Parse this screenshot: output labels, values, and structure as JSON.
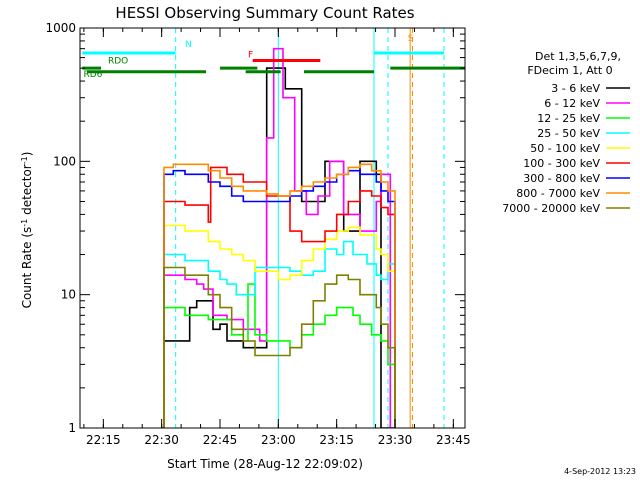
{
  "chart_data": {
    "type": "line",
    "title": "HESSI Observing Summary Count Rates",
    "xlabel": "Start Time (28-Aug-12 22:09:02)",
    "ylabel_parts": [
      "Count Rate (s",
      "-1",
      " detector",
      "-1",
      ")"
    ],
    "yscale": "log",
    "ylim": [
      1,
      1000
    ],
    "xlim": [
      22.15,
      23.8
    ],
    "x_unit": "hours UT",
    "y_ticks": [
      1,
      10,
      100,
      1000
    ],
    "y_tick_labels": [
      "1",
      "10",
      "100",
      "1000"
    ],
    "x_ticks": [
      22.25,
      22.5,
      22.75,
      23.0,
      23.25,
      23.5,
      23.75
    ],
    "x_tick_labels": [
      "22:15",
      "22:30",
      "22:45",
      "23:00",
      "23:15",
      "23:30",
      "23:45"
    ],
    "footer_date": "4-Sep-2012 13:23",
    "legend": {
      "header_lines": [
        "Det 1,3,5,6,7,9,",
        "FDecim 1, Att 0"
      ],
      "placement": "right"
    },
    "series": [
      {
        "name": "3 - 6 keV",
        "color": "#000000",
        "x": [
          22.5,
          22.51,
          22.58,
          22.62,
          22.65,
          22.72,
          22.75,
          22.78,
          22.85,
          22.95,
          23.03,
          23.1,
          23.2,
          23.28,
          23.35,
          23.42,
          23.44,
          23.48,
          23.5
        ],
        "y": [
          1,
          4.5,
          4.5,
          8,
          9,
          5.5,
          6,
          4.5,
          4,
          500,
          350,
          50,
          100,
          30,
          100,
          80,
          1,
          1,
          1
        ]
      },
      {
        "name": "6 - 12 keV",
        "color": "#ff00ff",
        "x": [
          22.5,
          22.51,
          22.6,
          22.65,
          22.68,
          22.72,
          22.78,
          22.85,
          22.92,
          22.95,
          22.98,
          23.02,
          23.07,
          23.12,
          23.17,
          23.22,
          23.28,
          23.35,
          23.42,
          23.44,
          23.48,
          23.5
        ],
        "y": [
          1,
          14,
          13,
          12,
          11,
          7,
          6.5,
          5.5,
          4.5,
          150,
          700,
          300,
          60,
          40,
          55,
          100,
          40,
          30,
          50,
          80,
          1,
          1
        ]
      },
      {
        "name": "12 - 25 keV",
        "color": "#00ff00",
        "x": [
          22.5,
          22.51,
          22.6,
          22.7,
          22.8,
          22.85,
          22.87,
          22.9,
          22.95,
          23.0,
          23.05,
          23.1,
          23.15,
          23.2,
          23.25,
          23.28,
          23.32,
          23.35,
          23.4,
          23.44,
          23.47,
          23.5
        ],
        "y": [
          1,
          8,
          7,
          6.5,
          5,
          4.5,
          12,
          5,
          4.5,
          4.5,
          4,
          5,
          6,
          7,
          8,
          8,
          7,
          6,
          5,
          4.5,
          3,
          1
        ]
      },
      {
        "name": "25 - 50 keV",
        "color": "#00ffff",
        "x": [
          22.5,
          22.51,
          22.6,
          22.7,
          22.75,
          22.78,
          22.82,
          22.9,
          23.0,
          23.05,
          23.1,
          23.15,
          23.2,
          23.25,
          23.28,
          23.32,
          23.38,
          23.42,
          23.44,
          23.47,
          23.5
        ],
        "y": [
          1,
          20,
          18,
          15,
          13,
          12,
          10,
          16,
          16,
          15,
          14,
          15,
          22,
          20,
          25,
          20,
          17,
          14,
          13,
          17,
          1
        ]
      },
      {
        "name": "50 - 100 keV",
        "color": "#ffff00",
        "x": [
          22.5,
          22.51,
          22.6,
          22.7,
          22.75,
          22.8,
          22.85,
          22.9,
          23.0,
          23.05,
          23.1,
          23.15,
          23.2,
          23.25,
          23.3,
          23.35,
          23.42,
          23.44,
          23.47,
          23.5
        ],
        "y": [
          1,
          33,
          30,
          25,
          22,
          20,
          18,
          15,
          13,
          14,
          18,
          22,
          26,
          30,
          32,
          28,
          22,
          20,
          15,
          1
        ]
      },
      {
        "name": "100 - 300 keV",
        "color": "#ff0000",
        "x": [
          22.5,
          22.51,
          22.6,
          22.7,
          22.71,
          22.78,
          22.85,
          22.95,
          23.05,
          23.1,
          23.15,
          23.2,
          23.25,
          23.3,
          23.35,
          23.4,
          23.44,
          23.47,
          23.5
        ],
        "y": [
          1,
          50,
          47,
          35,
          90,
          80,
          70,
          55,
          30,
          25,
          25,
          30,
          40,
          50,
          60,
          55,
          45,
          40,
          1
        ]
      },
      {
        "name": "300 - 800 keV",
        "color": "#0000ff",
        "x": [
          22.5,
          22.51,
          22.55,
          22.6,
          22.7,
          22.75,
          22.8,
          22.85,
          22.95,
          23.0,
          23.05,
          23.1,
          23.15,
          23.2,
          23.25,
          23.3,
          23.35,
          23.42,
          23.44,
          23.47,
          23.5
        ],
        "y": [
          1,
          80,
          85,
          80,
          70,
          65,
          55,
          50,
          50,
          50,
          55,
          60,
          65,
          70,
          80,
          85,
          80,
          70,
          60,
          50,
          1
        ]
      },
      {
        "name": "800 - 7000 keV",
        "color": "#ff8c00",
        "x": [
          22.5,
          22.51,
          22.55,
          22.6,
          22.7,
          22.75,
          22.8,
          22.85,
          22.95,
          23.0,
          23.05,
          23.1,
          23.15,
          23.2,
          23.25,
          23.3,
          23.35,
          23.4,
          23.44,
          23.47,
          23.5
        ],
        "y": [
          1,
          90,
          95,
          95,
          85,
          75,
          65,
          60,
          57,
          55,
          60,
          65,
          70,
          75,
          80,
          90,
          95,
          85,
          70,
          60,
          1
        ]
      },
      {
        "name": "7000 - 20000 keV",
        "color": "#808000",
        "x": [
          22.5,
          22.51,
          22.6,
          22.7,
          22.75,
          22.8,
          22.85,
          22.9,
          23.0,
          23.05,
          23.1,
          23.15,
          23.2,
          23.25,
          23.3,
          23.35,
          23.42,
          23.44,
          23.47,
          23.5
        ],
        "y": [
          1,
          16,
          14,
          10,
          8,
          5.5,
          4.5,
          3.5,
          3.5,
          4,
          6,
          9,
          12,
          14,
          13,
          10,
          8,
          6,
          4,
          1
        ]
      }
    ],
    "vertical_lines": [
      {
        "x": 22.56,
        "color": "#00ffff",
        "style": "dashed"
      },
      {
        "x": 23.0,
        "color": "#00ffff",
        "style": "solid"
      },
      {
        "x": 23.41,
        "color": "#00ffff",
        "style": "solid"
      },
      {
        "x": 23.47,
        "color": "#00ffff",
        "style": "dashed"
      },
      {
        "x": 23.565,
        "color": "#ff8c00",
        "style": "solid"
      },
      {
        "x": 23.575,
        "color": "#ff8c00",
        "style": "dashed"
      },
      {
        "x": 23.71,
        "color": "#00ffff",
        "style": "dashed"
      }
    ],
    "flag_bars": [
      {
        "label": "N",
        "color": "#00ffff",
        "segments": [
          [
            22.16,
            22.56
          ],
          [
            23.41,
            23.71
          ]
        ],
        "y_level": 650
      },
      {
        "label": "S",
        "color": "#ff8c00",
        "segments": [],
        "y_level": 720
      },
      {
        "label": "F",
        "color": "#ff0000",
        "segments": [
          [
            22.89,
            23.18
          ]
        ],
        "y_level": 570
      },
      {
        "label": "RDO",
        "color": "#008000",
        "segments": [
          [
            22.18,
            22.69
          ],
          [
            22.86,
            23.01
          ],
          [
            23.11,
            23.41
          ]
        ],
        "y_level": 470
      },
      {
        "label": "RD6",
        "color": "#008000",
        "segments": [
          [
            22.16,
            22.24
          ],
          [
            22.75,
            22.91
          ],
          [
            23.48,
            23.8
          ]
        ],
        "y_level": 500
      }
    ]
  }
}
